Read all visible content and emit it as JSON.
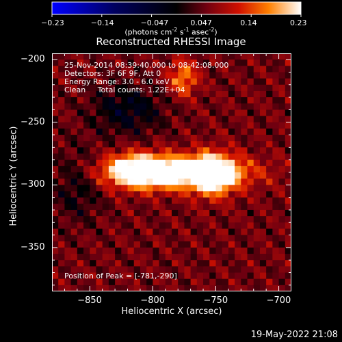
{
  "chart_data": {
    "type": "heatmap",
    "title": "Reconstructed RHESSI Image",
    "xlabel": "Heliocentric X (arcsec)",
    "ylabel": "Heliocentric Y (arcsec)",
    "xlim": [
      -880,
      -690
    ],
    "ylim": [
      -385,
      -195
    ],
    "x_ticks": [
      -850,
      -800,
      -750,
      -700
    ],
    "y_ticks": [
      -200,
      -250,
      -300,
      -350
    ],
    "colorbar": {
      "range": [
        -0.23,
        0.23
      ],
      "tick_labels": [
        "-0.23",
        "-0.14",
        "-0.047",
        "0.047",
        "0.14",
        "0.23"
      ],
      "unit_label": "(photons cm",
      "unit_exp1": "-2",
      "unit_mid": " s",
      "unit_exp2": "-1",
      "unit_mid2": " asec",
      "unit_exp3": "-2",
      "unit_end": ")"
    },
    "annotations": {
      "time_range": "25-Nov-2014 08:39:40.000 to 08:42:08.000",
      "detectors": "Detectors: 3F 6F 9F, Att 0",
      "energy": "Energy Range: 3.0 - 6.0 keV",
      "method": "Clean     Total counts: 1.22E+04",
      "peak": "Position of Peak = [-781,-290]"
    },
    "peak": {
      "x": -781,
      "y": -290
    },
    "sources": [
      {
        "x": -781,
        "y": -290,
        "amp": 0.23,
        "sx": 38,
        "sy": 9
      },
      {
        "x": -752,
        "y": -292,
        "amp": 0.17,
        "sx": 12,
        "sy": 12
      },
      {
        "x": -812,
        "y": -288,
        "amp": 0.15,
        "sx": 16,
        "sy": 9
      },
      {
        "x": -776,
        "y": -215,
        "amp": 0.12,
        "sx": 8,
        "sy": 10
      },
      {
        "x": -820,
        "y": -240,
        "amp": -0.08,
        "sx": 20,
        "sy": 14
      },
      {
        "x": -860,
        "y": -300,
        "amp": -0.06,
        "sx": 14,
        "sy": 20
      }
    ]
  },
  "footer_date": "19-May-2022 21:08"
}
